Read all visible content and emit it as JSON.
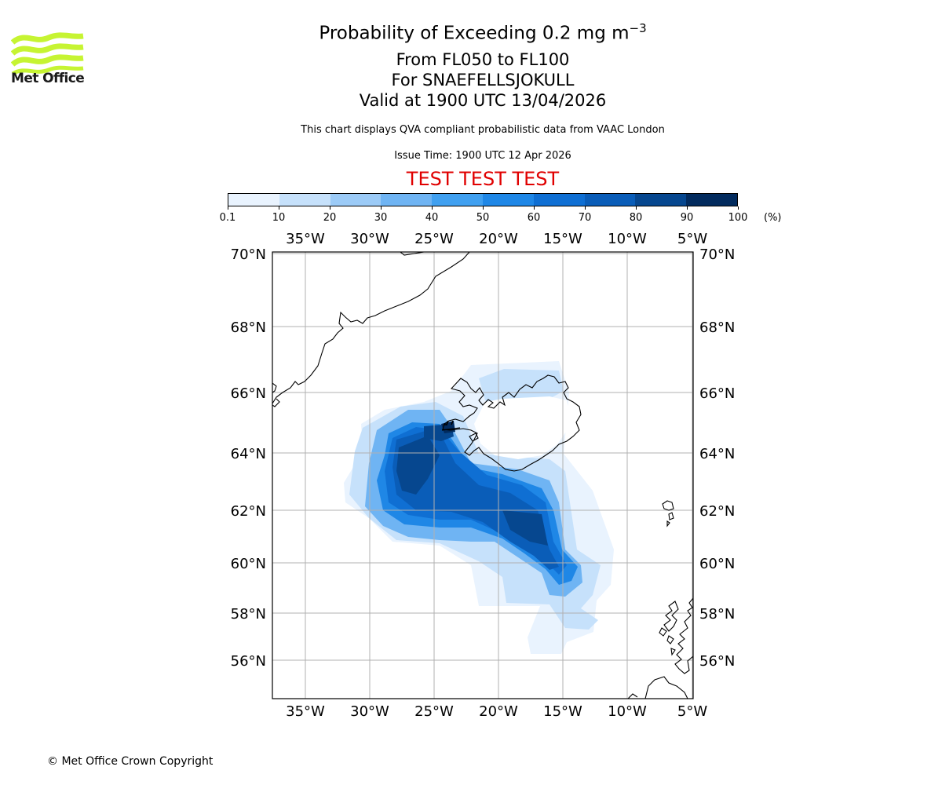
{
  "logo": {
    "text": "Met Office",
    "color": "#c6f432"
  },
  "title": {
    "main": "Probability of Exceeding 0.2 mg m",
    "main_superscript": "−3",
    "levels": "From FL050 to FL100",
    "location": "For SNAEFELLSJOKULL",
    "valid": "Valid at 1900 UTC 13/04/2026",
    "description": "This chart displays QVA compliant probabilistic data from VAAC London",
    "issue_time": "Issue Time: 1900 UTC 12 Apr 2026",
    "test_banner": "TEST TEST TEST",
    "test_color": "#e00000"
  },
  "colorbar": {
    "ticks": [
      "0.1",
      "10",
      "20",
      "30",
      "40",
      "50",
      "60",
      "70",
      "80",
      "90",
      "100"
    ],
    "unit": "(%)",
    "colors": [
      "#e9f3fe",
      "#c6e1fb",
      "#9ccbf7",
      "#6fb4f3",
      "#40a0f0",
      "#1f87e6",
      "#0f6fd3",
      "#0a5db8",
      "#06478f",
      "#022b5e"
    ]
  },
  "map": {
    "lon_ticks": [
      "35°W",
      "30°W",
      "25°W",
      "20°W",
      "15°W",
      "10°W",
      "5°W"
    ],
    "lat_ticks": [
      "70°N",
      "68°N",
      "66°N",
      "64°N",
      "62°N",
      "60°N",
      "58°N",
      "56°N"
    ],
    "source_marker": "volcano-marker-snaefellsjokull"
  },
  "footer": {
    "copyright": "© Met Office Crown Copyright"
  }
}
